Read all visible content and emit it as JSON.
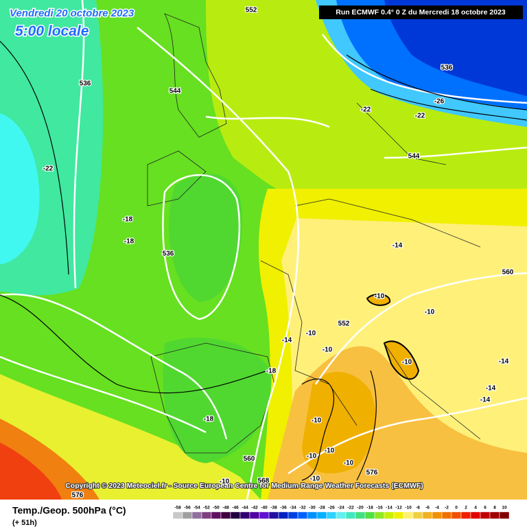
{
  "header": {
    "date": "Vendredi 20 octobre 2023",
    "time": "5:00 locale",
    "run": "Run ECMWF 0.4° 0 Z du Mercredi 18 octobre 2023"
  },
  "copyright": "Copyright © 2023 Meteociel.fr - Source European Centre for Medium-Range Weather Forecasts (ECMWF)",
  "map_labels": [
    552,
    536,
    544,
    -22,
    -18,
    -18,
    536,
    536,
    -26,
    -22,
    -22,
    544,
    -14,
    560,
    -10,
    -10,
    552,
    -10,
    -14,
    -10,
    -10,
    -14,
    -18,
    -14,
    -14,
    -18,
    -10,
    560,
    -10,
    -10,
    -10,
    576,
    568,
    -10,
    -10,
    576
  ],
  "legend": {
    "title": "Temp./Geop. 500hPa (°C)",
    "lead_time": "(+ 51h)",
    "ticks": [
      -58,
      -56,
      -54,
      -52,
      -50,
      -48,
      -46,
      -44,
      -42,
      -40,
      -38,
      -36,
      -34,
      -32,
      -30,
      -28,
      -26,
      -24,
      -22,
      -20,
      -18,
      -16,
      -14,
      -12,
      -10,
      -8,
      -6,
      -4,
      -2,
      0,
      2,
      4,
      6,
      8,
      10
    ],
    "colors": [
      "#c8c8c8",
      "#a0a0a0",
      "#9070a0",
      "#804080",
      "#601060",
      "#400040",
      "#200040",
      "#300070",
      "#5000a0",
      "#6010d0",
      "#2010a0",
      "#0020c0",
      "#0040e0",
      "#0060ff",
      "#0090ff",
      "#00b0ff",
      "#30d0ff",
      "#60f0f0",
      "#40e8c0",
      "#40e080",
      "#50e040",
      "#90e820",
      "#c8f000",
      "#f0f000",
      "#fff070",
      "#f0d040",
      "#f0b020",
      "#f09000",
      "#f07000",
      "#f05000",
      "#f02000",
      "#e00000",
      "#c00000",
      "#a00000",
      "#800000"
    ]
  }
}
